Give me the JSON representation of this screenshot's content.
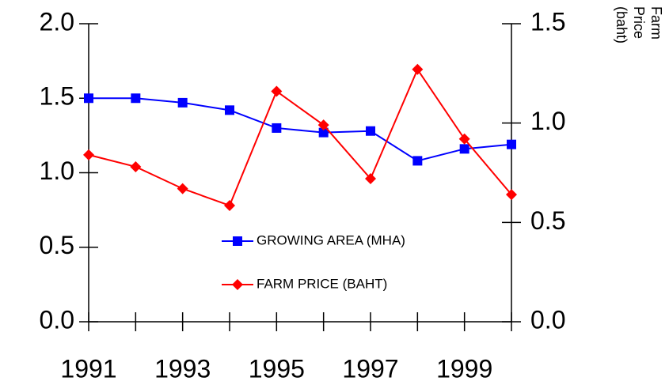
{
  "chart_data": {
    "type": "line",
    "y2label": "Farm Price (baht)",
    "x": [
      1991,
      1992,
      1993,
      1994,
      1995,
      1996,
      1997,
      1998,
      1999,
      2000
    ],
    "xlim": [
      1991,
      2000
    ],
    "xticks": [
      1991,
      1993,
      1995,
      1997,
      1999
    ],
    "ylim": [
      0,
      2
    ],
    "yticks": [
      {
        "value": 0,
        "label": "0.0"
      },
      0.5,
      {
        "value": 1,
        "label": "1.0"
      },
      1.5,
      {
        "value": 2,
        "label": "2.0"
      }
    ],
    "y2lim": [
      0,
      1.5
    ],
    "y2ticks": [
      {
        "value": 0,
        "label": "0.0"
      },
      0.5,
      {
        "value": 1,
        "label": "1.0"
      },
      1.5
    ],
    "series": [
      {
        "name": "GROWING AREA (MHA)",
        "color": "#0000ff",
        "marker": "square",
        "values": [
          1.5,
          1.5,
          1.47,
          1.42,
          1.3,
          1.27,
          1.28,
          1.08,
          1.16,
          1.19
        ]
      },
      {
        "name": "FARM PRICE (BAHT)",
        "color": "#ff0000",
        "marker": "diamond",
        "axis": "y2",
        "values": [
          0.84,
          0.78,
          0.67,
          0.585,
          1.16,
          0.99,
          0.72,
          1.27,
          0.92,
          0.64
        ]
      }
    ]
  }
}
